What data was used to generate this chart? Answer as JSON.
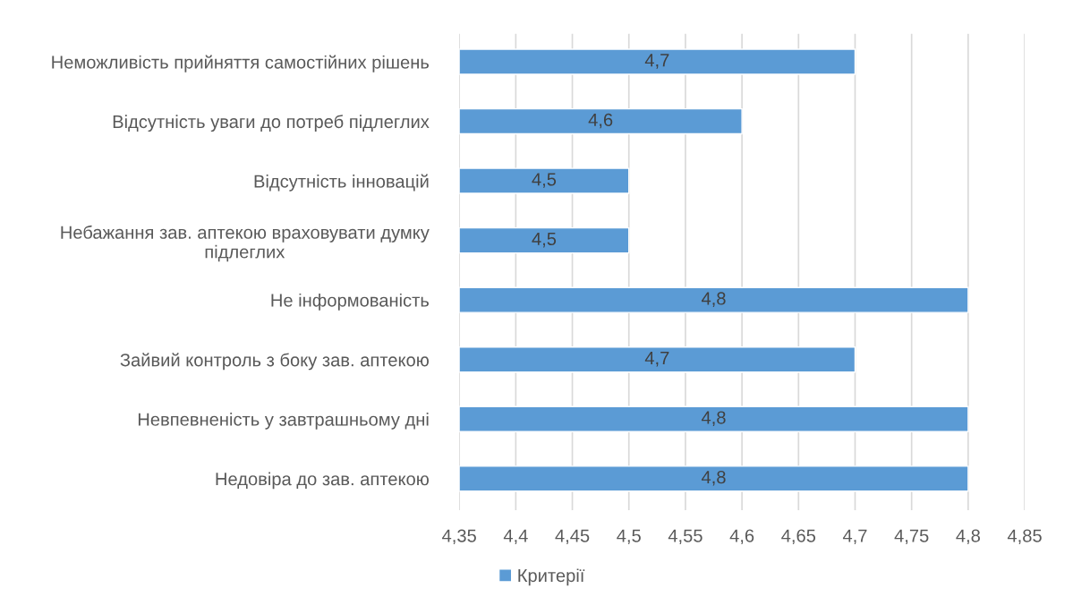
{
  "chart_data": {
    "type": "bar",
    "orientation": "horizontal",
    "categories": [
      "Неможливість прийняття самостійних рішень",
      "Відсутність уваги до потреб підлеглих",
      "Відсутність інновацій",
      "Небажання зав. аптекою враховувати думку підлеглих",
      "Не інформованість",
      "Зайвий контроль з боку зав. аптекою",
      "Невпевненість у завтрашньому дні",
      "Недовіра до зав. аптекою"
    ],
    "series": [
      {
        "name": "Критерії",
        "color": "#5b9bd5",
        "values": [
          4.7,
          4.6,
          4.5,
          4.5,
          4.8,
          4.7,
          4.8,
          4.8
        ],
        "value_labels": [
          "4,7",
          "4,6",
          "4,5",
          "4,5",
          "4,8",
          "4,7",
          "4,8",
          "4,8"
        ]
      }
    ],
    "xlim": [
      4.35,
      4.85
    ],
    "xticks": [
      {
        "value": 4.35,
        "label": "4,35"
      },
      {
        "value": 4.4,
        "label": "4,4"
      },
      {
        "value": 4.45,
        "label": "4,45"
      },
      {
        "value": 4.5,
        "label": "4,5"
      },
      {
        "value": 4.55,
        "label": "4,55"
      },
      {
        "value": 4.6,
        "label": "4,6"
      },
      {
        "value": 4.65,
        "label": "4,65"
      },
      {
        "value": 4.7,
        "label": "4,7"
      },
      {
        "value": 4.75,
        "label": "4,75"
      },
      {
        "value": 4.8,
        "label": "4,8"
      },
      {
        "value": 4.85,
        "label": "4,85"
      }
    ],
    "grid": "x",
    "legend": "bottom"
  }
}
